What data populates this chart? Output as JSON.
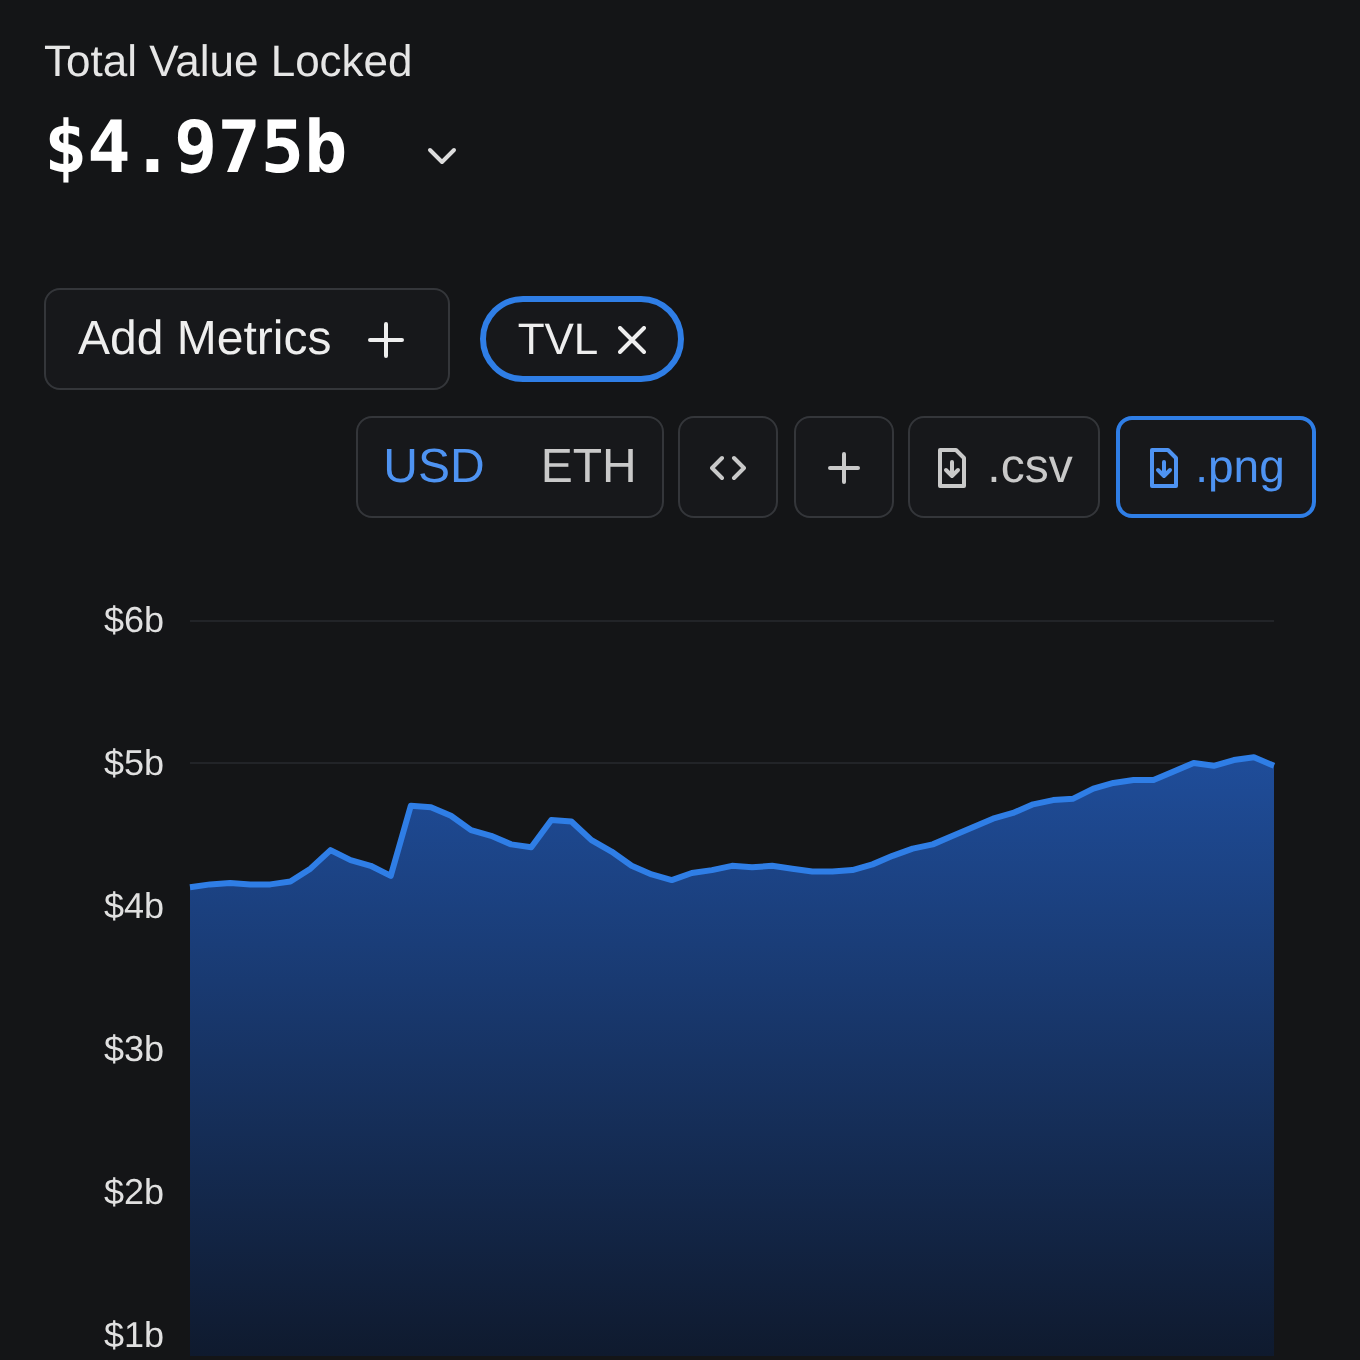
{
  "chart_data": {
    "type": "area",
    "title": "Total Value Locked",
    "subtitle": "$4.975b",
    "annotations": [
      "Add Metrics",
      "TVL",
      "USD",
      "ETH",
      ".csv",
      ".png"
    ],
    "categories": [
      null,
      null,
      null,
      null,
      null,
      null,
      null,
      null,
      null,
      null,
      null,
      null,
      null,
      null,
      null,
      null,
      null,
      null,
      null,
      null,
      null,
      null,
      null,
      null,
      null,
      null,
      null,
      null,
      null,
      null,
      null,
      null,
      null,
      null,
      null,
      null,
      null,
      null,
      null,
      null,
      null,
      null,
      null,
      null,
      null,
      null,
      null,
      null,
      null,
      null,
      null,
      null,
      null,
      null,
      null
    ],
    "series": [
      {
        "color": "#2f7ee6",
        "values": [
          4.13,
          4.15,
          4.16,
          4.15,
          4.15,
          4.17,
          4.26,
          4.39,
          4.32,
          4.28,
          4.21,
          4.7,
          4.69,
          4.63,
          4.53,
          4.49,
          4.43,
          4.41,
          4.6,
          4.59,
          4.46,
          4.38,
          4.28,
          4.22,
          4.18,
          4.23,
          4.25,
          4.28,
          4.27,
          4.28,
          4.26,
          4.24,
          4.24,
          4.25,
          4.29,
          4.35,
          4.4,
          4.43,
          4.49,
          4.55,
          4.61,
          4.65,
          4.71,
          4.74,
          4.75,
          4.82,
          4.86,
          4.88,
          4.88,
          4.94,
          5.0,
          4.98,
          5.02,
          5.04,
          4.98
        ]
      }
    ],
    "ylim": [
      0.85,
      6
    ],
    "yticks": [
      {
        "value": 1,
        "label": "$1b"
      },
      {
        "value": 2,
        "label": "$2b"
      },
      {
        "value": 3,
        "label": "$3b"
      },
      {
        "value": 4,
        "label": "$4b"
      },
      {
        "value": 5,
        "label": "$5b"
      },
      {
        "value": 6,
        "label": "$6b"
      }
    ],
    "grid": "y",
    "marker": "none",
    "tick_labels": "y"
  }
}
